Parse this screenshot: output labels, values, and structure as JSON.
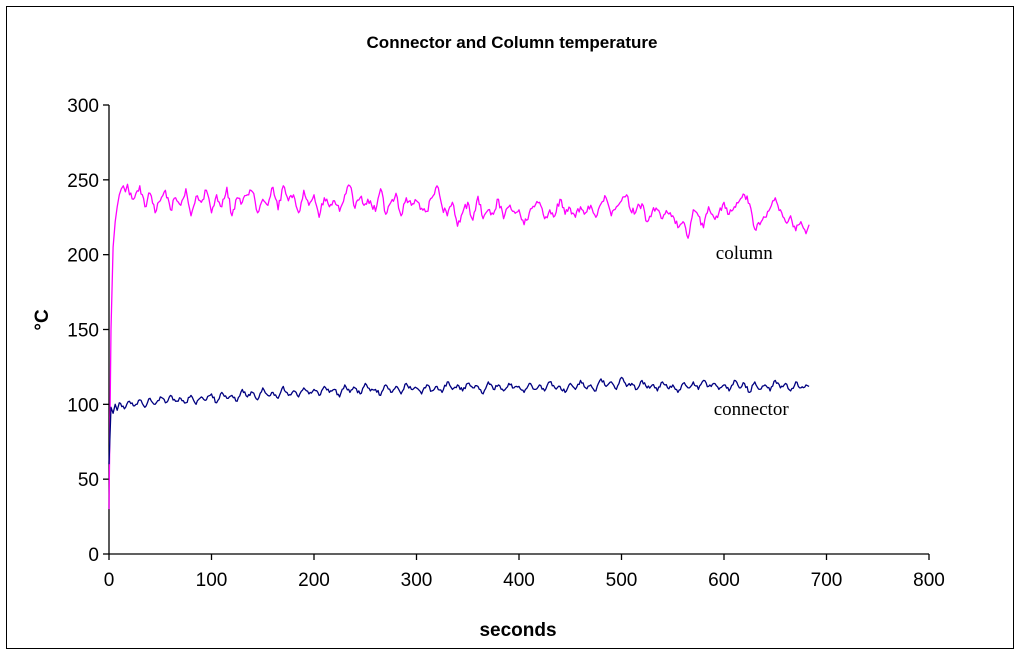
{
  "chart_data": {
    "type": "line",
    "title": "Connector and Column temperature",
    "xlabel": "seconds",
    "ylabel": "°C",
    "xlim": [
      0,
      800
    ],
    "ylim": [
      0,
      300
    ],
    "xticks": [
      0,
      100,
      200,
      300,
      400,
      500,
      600,
      700,
      800
    ],
    "yticks": [
      0,
      50,
      100,
      150,
      200,
      250,
      300
    ],
    "grid": false,
    "legend": "none",
    "annotations": [
      {
        "text": "column",
        "x": 592,
        "y": 197,
        "series": "column"
      },
      {
        "text": "connector",
        "x": 590,
        "y": 93,
        "series": "connector"
      }
    ],
    "series": [
      {
        "name": "column",
        "color": "#FF00FF",
        "x": [
          0,
          2,
          4,
          6,
          8,
          10,
          12,
          14,
          16,
          18,
          20,
          25,
          30,
          35,
          40,
          45,
          50,
          55,
          60,
          65,
          70,
          75,
          80,
          85,
          90,
          95,
          100,
          105,
          110,
          115,
          120,
          125,
          130,
          135,
          140,
          145,
          150,
          155,
          160,
          165,
          170,
          175,
          180,
          185,
          190,
          195,
          200,
          205,
          210,
          215,
          220,
          225,
          230,
          235,
          240,
          245,
          250,
          255,
          260,
          265,
          270,
          275,
          280,
          285,
          290,
          295,
          300,
          305,
          310,
          315,
          320,
          325,
          330,
          335,
          340,
          345,
          350,
          355,
          360,
          365,
          370,
          375,
          380,
          385,
          390,
          395,
          400,
          405,
          410,
          415,
          420,
          425,
          430,
          435,
          440,
          445,
          450,
          455,
          460,
          465,
          470,
          475,
          480,
          485,
          490,
          495,
          500,
          505,
          510,
          515,
          520,
          525,
          530,
          535,
          540,
          545,
          550,
          555,
          560,
          565,
          570,
          575,
          580,
          585,
          590,
          595,
          600,
          605,
          610,
          615,
          620,
          625,
          630,
          635,
          640,
          645,
          650,
          655,
          660,
          665,
          670,
          675,
          680,
          683
        ],
        "values": [
          30,
          150,
          205,
          222,
          232,
          240,
          244,
          246,
          242,
          247,
          240,
          238,
          246,
          232,
          241,
          228,
          236,
          243,
          230,
          238,
          233,
          244,
          226,
          239,
          235,
          243,
          228,
          240,
          232,
          245,
          226,
          238,
          235,
          240,
          242,
          228,
          237,
          233,
          245,
          230,
          246,
          236,
          240,
          228,
          243,
          233,
          240,
          225,
          238,
          232,
          236,
          229,
          240,
          246,
          231,
          238,
          234,
          236,
          229,
          244,
          227,
          235,
          241,
          226,
          238,
          233,
          236,
          231,
          229,
          238,
          246,
          232,
          226,
          235,
          219,
          228,
          235,
          223,
          239,
          224,
          230,
          227,
          237,
          224,
          232,
          229,
          230,
          220,
          228,
          232,
          235,
          224,
          230,
          226,
          237,
          227,
          231,
          225,
          232,
          228,
          233,
          225,
          234,
          238,
          226,
          232,
          236,
          240,
          228,
          231,
          234,
          222,
          229,
          230,
          224,
          228,
          226,
          218,
          222,
          211,
          230,
          226,
          218,
          232,
          225,
          228,
          235,
          227,
          232,
          236,
          240,
          234,
          217,
          220,
          225,
          231,
          238,
          230,
          222,
          226,
          216,
          222,
          214,
          220
        ]
      },
      {
        "name": "connector",
        "color": "#000080",
        "x": [
          0,
          2,
          4,
          6,
          8,
          10,
          15,
          20,
          25,
          30,
          35,
          40,
          45,
          50,
          55,
          60,
          65,
          70,
          75,
          80,
          85,
          90,
          95,
          100,
          105,
          110,
          115,
          120,
          125,
          130,
          135,
          140,
          145,
          150,
          155,
          160,
          165,
          170,
          175,
          180,
          185,
          190,
          195,
          200,
          205,
          210,
          215,
          220,
          225,
          230,
          235,
          240,
          245,
          250,
          255,
          260,
          265,
          270,
          275,
          280,
          285,
          290,
          295,
          300,
          305,
          310,
          315,
          320,
          325,
          330,
          335,
          340,
          345,
          350,
          355,
          360,
          365,
          370,
          375,
          380,
          385,
          390,
          395,
          400,
          405,
          410,
          415,
          420,
          425,
          430,
          435,
          440,
          445,
          450,
          455,
          460,
          465,
          470,
          475,
          480,
          485,
          490,
          495,
          500,
          505,
          510,
          515,
          520,
          525,
          530,
          535,
          540,
          545,
          550,
          555,
          560,
          565,
          570,
          575,
          580,
          585,
          590,
          595,
          600,
          605,
          610,
          615,
          620,
          625,
          630,
          635,
          640,
          645,
          650,
          655,
          660,
          665,
          670,
          675,
          680,
          683
        ],
        "values": [
          60,
          98,
          94,
          100,
          96,
          101,
          97,
          102,
          99,
          103,
          98,
          104,
          100,
          105,
          101,
          106,
          102,
          104,
          101,
          106,
          100,
          105,
          103,
          107,
          101,
          108,
          104,
          106,
          102,
          110,
          105,
          108,
          103,
          111,
          106,
          108,
          104,
          112,
          106,
          109,
          105,
          111,
          107,
          110,
          106,
          112,
          108,
          110,
          105,
          113,
          108,
          111,
          107,
          114,
          109,
          110,
          106,
          113,
          108,
          112,
          107,
          114,
          110,
          111,
          107,
          113,
          109,
          112,
          108,
          115,
          110,
          113,
          109,
          114,
          111,
          112,
          107,
          115,
          110,
          113,
          109,
          114,
          111,
          112,
          108,
          114,
          110,
          113,
          109,
          115,
          111,
          112,
          108,
          114,
          110,
          116,
          111,
          113,
          109,
          117,
          112,
          115,
          110,
          118,
          112,
          114,
          110,
          116,
          111,
          113,
          109,
          115,
          111,
          113,
          108,
          114,
          111,
          115,
          110,
          116,
          112,
          114,
          110,
          113,
          109,
          116,
          111,
          114,
          108,
          115,
          110,
          113,
          109,
          116,
          111,
          114,
          109,
          115,
          111,
          113,
          112
        ]
      }
    ]
  }
}
